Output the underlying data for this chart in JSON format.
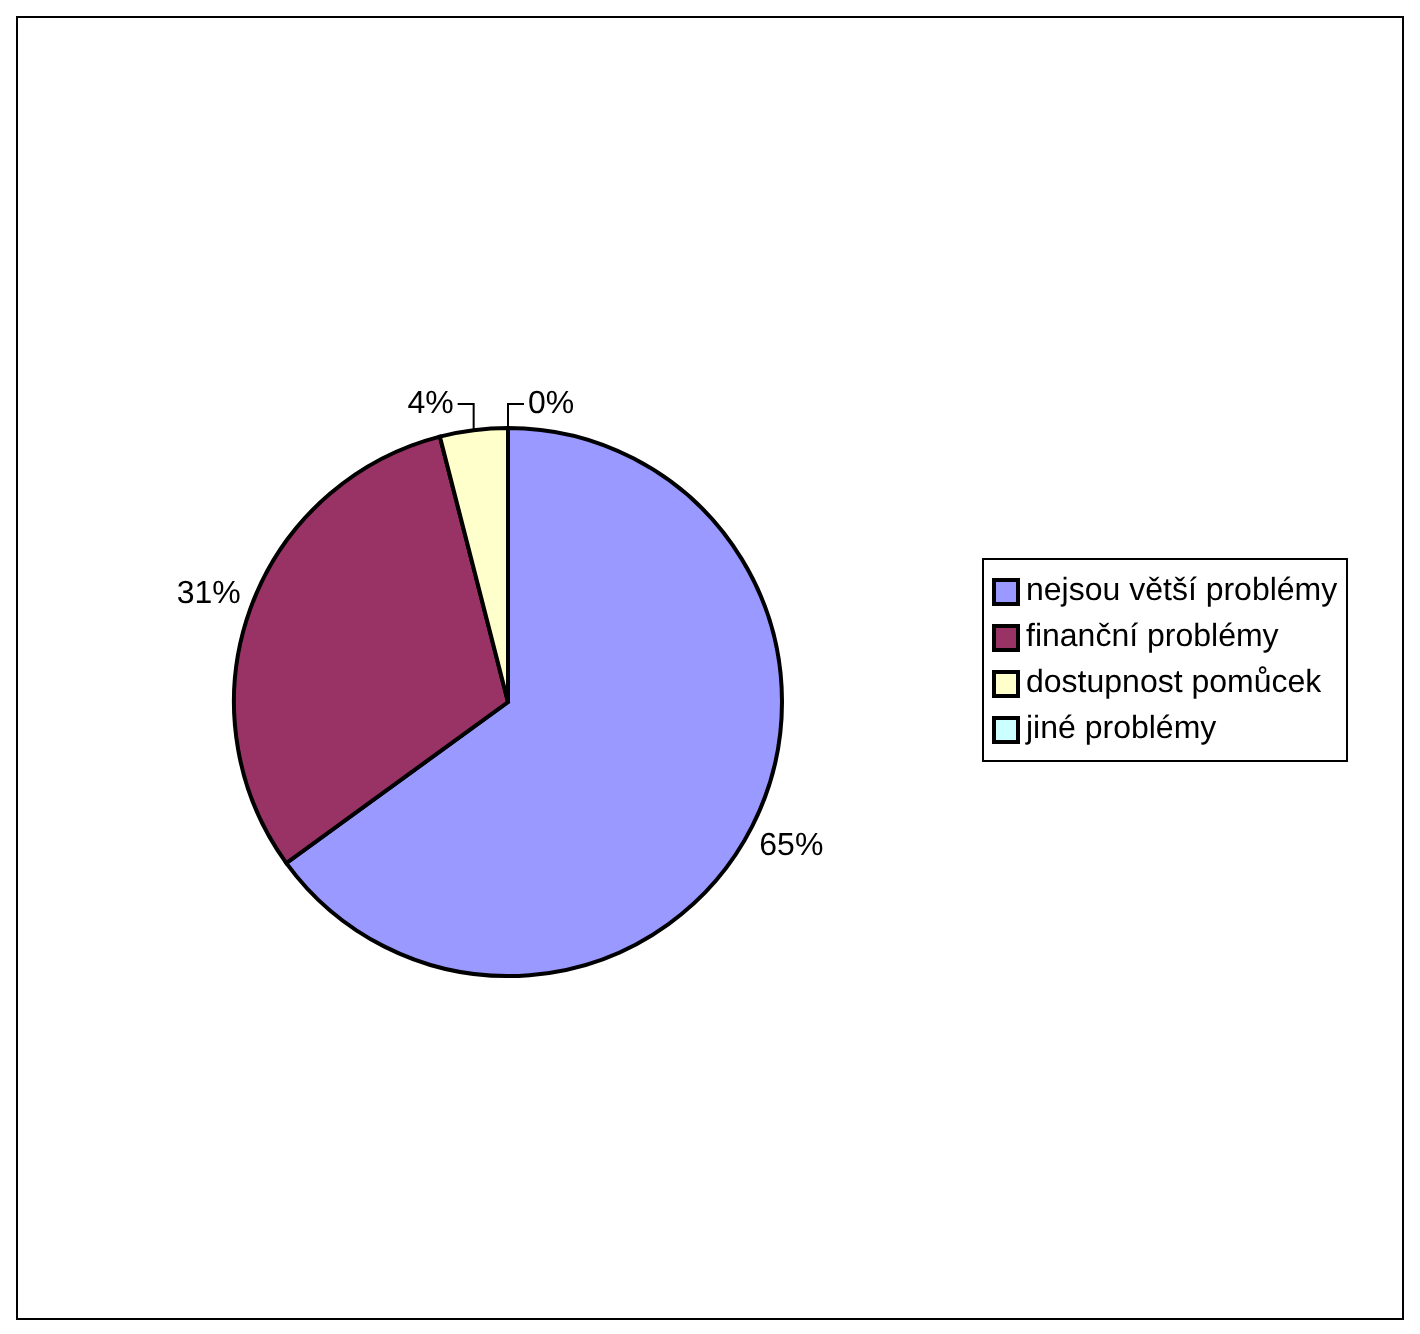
{
  "chart_data": {
    "type": "pie",
    "categories": [
      "nejsou větší problémy",
      "finanční problémy",
      "dostupnost pomůcek",
      "jiné problémy"
    ],
    "values": [
      65,
      31,
      4,
      0
    ],
    "colors": [
      "#9999ff",
      "#993366",
      "#ffffcc",
      "#ccffff"
    ],
    "value_labels": [
      "65%",
      "31%",
      "4%",
      "0%"
    ],
    "legend": "right"
  }
}
